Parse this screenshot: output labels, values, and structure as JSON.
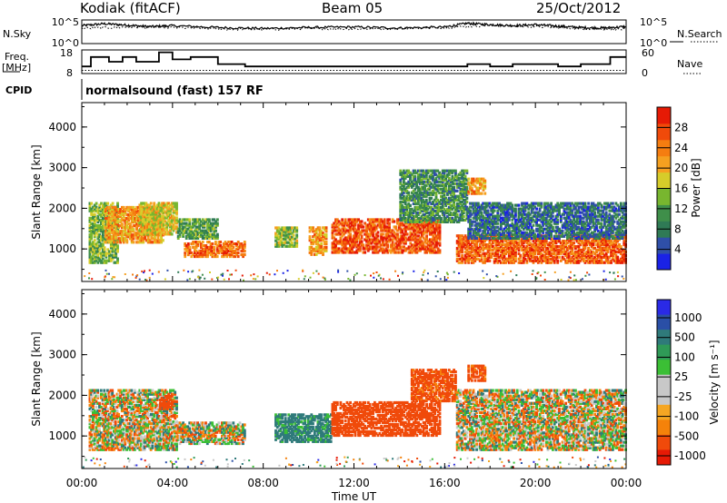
{
  "header": {
    "station": "Kodiak (fitACF)",
    "beam": "Beam 05",
    "date": "25/Oct/2012"
  },
  "side_labels": {
    "nsky": "N.Sky",
    "nsearch": "N.Search",
    "freq": "Freq.",
    "freq_unit": "[MHz]",
    "nave": "Nave",
    "cpid": "CPID"
  },
  "cpid_text": "normalsound (fast) 157 RF",
  "colors": {
    "power": [
      "#1a22e6",
      "#2f4fa8",
      "#2f7a55",
      "#3f8f4a",
      "#78b62f",
      "#d6cc2a",
      "#f5a020",
      "#f57d10",
      "#f04a0a",
      "#e61a05"
    ],
    "velocity": [
      "#e61a05",
      "#f04a0a",
      "#f5820a",
      "#f5a623",
      "#c8c8c8",
      "#c8c8c8",
      "#3bbf35",
      "#2f9a57",
      "#2f7a7a",
      "#2a4fa6",
      "#2a2ae6"
    ]
  },
  "chart_data": [
    {
      "type": "line",
      "name": "noise-panel",
      "y_ticks_left": [
        "10^5",
        "10^0"
      ],
      "y_ticks_right": [
        "10^5",
        "10^0"
      ],
      "y_scale": "log",
      "series": [
        {
          "style": "solid",
          "x": [
            0,
            1,
            2,
            3,
            4,
            6,
            8,
            10,
            12,
            14,
            16,
            17,
            18,
            19,
            20,
            21,
            22,
            23,
            24
          ],
          "values_log10": [
            3.8,
            4.2,
            3.9,
            3.6,
            3.8,
            3.4,
            3.2,
            3.4,
            3.5,
            3.3,
            3.5,
            4.3,
            4.0,
            3.8,
            4.0,
            3.7,
            3.4,
            3.3,
            3.6
          ]
        },
        {
          "style": "dotted",
          "x": [
            0,
            2,
            4,
            6,
            8,
            10,
            12,
            14,
            16,
            18,
            20,
            22,
            24
          ],
          "values_log10": [
            3.2,
            3.5,
            3.4,
            3.1,
            3.0,
            3.2,
            3.1,
            3.2,
            3.4,
            3.9,
            3.6,
            3.2,
            3.0
          ]
        }
      ]
    },
    {
      "type": "line",
      "name": "frequency-nave-panel",
      "y_ticks_left": [
        "18",
        "8"
      ],
      "y_ticks_right": [
        "60",
        "0"
      ],
      "series": [
        {
          "style": "step-solid",
          "unit": "MHz",
          "x": [
            0,
            0.4,
            1.2,
            1.8,
            2.4,
            3.4,
            4.0,
            4.8,
            6.0,
            7.2,
            9.0,
            11.0,
            13.0,
            15.0,
            16.0,
            17.0,
            18.0,
            19.0,
            21.0,
            22.0,
            23.3,
            24
          ],
          "values": [
            11.0,
            15.0,
            13.0,
            15.0,
            13.0,
            17.0,
            14.0,
            15.0,
            12.0,
            11.0,
            11.0,
            11.0,
            11.0,
            11.0,
            11.0,
            12.0,
            11.0,
            12.0,
            11.0,
            12.0,
            15.0,
            15.0
          ]
        },
        {
          "style": "dotted",
          "unit": "nave",
          "x": [
            0,
            24
          ],
          "values": [
            8,
            8
          ]
        }
      ]
    },
    {
      "type": "heatmap",
      "name": "power",
      "xlabel": "",
      "ylabel": "Slant Range [km]",
      "xlim": [
        0,
        24
      ],
      "ylim": [
        200,
        4600
      ],
      "yticks": [
        "1000",
        "2000",
        "3000",
        "4000"
      ],
      "colorbar_label": "Power [dB]",
      "colorbar_ticks": [
        "4",
        "8",
        "12",
        "16",
        "20",
        "24",
        "28"
      ],
      "clim": [
        0,
        32
      ],
      "regions": [
        {
          "t0": 0.3,
          "t1": 1.6,
          "r0": 700,
          "r1": 2200,
          "v": 14
        },
        {
          "t0": 1.0,
          "t1": 3.6,
          "r0": 1200,
          "r1": 2100,
          "v": 22
        },
        {
          "t0": 2.5,
          "t1": 4.2,
          "r0": 1400,
          "r1": 2200,
          "v": 18
        },
        {
          "t0": 4.5,
          "t1": 7.2,
          "r0": 850,
          "r1": 1250,
          "v": 25
        },
        {
          "t0": 4.2,
          "t1": 6.0,
          "r0": 1300,
          "r1": 1800,
          "v": 12
        },
        {
          "t0": 8.5,
          "t1": 9.5,
          "r0": 1100,
          "r1": 1600,
          "v": 15
        },
        {
          "t0": 10.0,
          "t1": 10.8,
          "r0": 900,
          "r1": 1600,
          "v": 22
        },
        {
          "t0": 11.0,
          "t1": 15.8,
          "r0": 950,
          "r1": 1800,
          "v": 27
        },
        {
          "t0": 14.0,
          "t1": 17.0,
          "r0": 1700,
          "r1": 3000,
          "v": 10
        },
        {
          "t0": 17.0,
          "t1": 17.8,
          "r0": 2400,
          "r1": 2800,
          "v": 22
        },
        {
          "t0": 16.5,
          "t1": 24.0,
          "r0": 700,
          "r1": 1400,
          "v": 26
        },
        {
          "t0": 17.0,
          "t1": 24.0,
          "r0": 1300,
          "r1": 2200,
          "v": 7
        }
      ]
    },
    {
      "type": "heatmap",
      "name": "velocity",
      "xlabel": "Time UT",
      "ylabel": "Slant Range [km]",
      "xlim": [
        0,
        24
      ],
      "ylim": [
        200,
        4600
      ],
      "xticks": [
        "00:00",
        "04:00",
        "08:00",
        "12:00",
        "16:00",
        "20:00",
        "00:00"
      ],
      "yticks": [
        "1000",
        "2000",
        "3000",
        "4000"
      ],
      "colorbar_label": "Velocity [m s⁻¹]",
      "colorbar_ticks": [
        "1000",
        "500",
        "100",
        "25",
        "-25",
        "-100",
        "-500",
        "-1000"
      ],
      "regions": [
        {
          "t0": 0.3,
          "t1": 4.2,
          "r0": 700,
          "r1": 2200,
          "v": 0
        },
        {
          "t0": 3.4,
          "t1": 4.0,
          "r0": 1700,
          "r1": 2100,
          "v": -300
        },
        {
          "t0": 4.2,
          "t1": 7.2,
          "r0": 850,
          "r1": 1400,
          "v": 0
        },
        {
          "t0": 8.5,
          "t1": 11.0,
          "r0": 900,
          "r1": 1600,
          "v": 200
        },
        {
          "t0": 11.0,
          "t1": 15.8,
          "r0": 1050,
          "r1": 1900,
          "v": -300
        },
        {
          "t0": 14.5,
          "t1": 16.5,
          "r0": 1900,
          "r1": 2700,
          "v": -200
        },
        {
          "t0": 17.0,
          "t1": 17.8,
          "r0": 2400,
          "r1": 2800,
          "v": -200
        },
        {
          "t0": 16.5,
          "t1": 24.0,
          "r0": 700,
          "r1": 2200,
          "v": 0
        }
      ]
    }
  ]
}
